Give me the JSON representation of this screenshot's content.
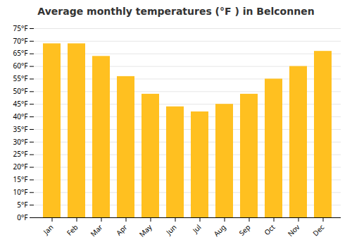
{
  "chart_data": {
    "type": "bar",
    "title": "Average monthly temperatures (°F ) in Belconnen",
    "categories": [
      "Jan",
      "Feb",
      "Mar",
      "Apr",
      "May",
      "Jun",
      "Jul",
      "Aug",
      "Sep",
      "Oct",
      "Nov",
      "Dec"
    ],
    "values": [
      69,
      69,
      64,
      56,
      49,
      44,
      42,
      45,
      49,
      55,
      60,
      66
    ],
    "color": "#FFC020",
    "ylim": [
      0,
      75
    ],
    "yticks": [
      {
        "value": 0,
        "label": "0°F"
      },
      {
        "value": 5,
        "label": "5°F"
      },
      {
        "value": 10,
        "label": "10°F"
      },
      {
        "value": 15,
        "label": "15°F"
      },
      {
        "value": 20,
        "label": "20°F"
      },
      {
        "value": 25,
        "label": "25°F"
      },
      {
        "value": 30,
        "label": "30°F"
      },
      {
        "value": 35,
        "label": "35°F"
      },
      {
        "value": 40,
        "label": "40°F"
      },
      {
        "value": 45,
        "label": "45°F"
      },
      {
        "value": 50,
        "label": "50°F"
      },
      {
        "value": 55,
        "label": "55°F"
      },
      {
        "value": 60,
        "label": "60°F"
      },
      {
        "value": 65,
        "label": "65°F"
      },
      {
        "value": 70,
        "label": "70°F"
      },
      {
        "value": 75,
        "label": "75°F"
      }
    ],
    "grid": true
  }
}
